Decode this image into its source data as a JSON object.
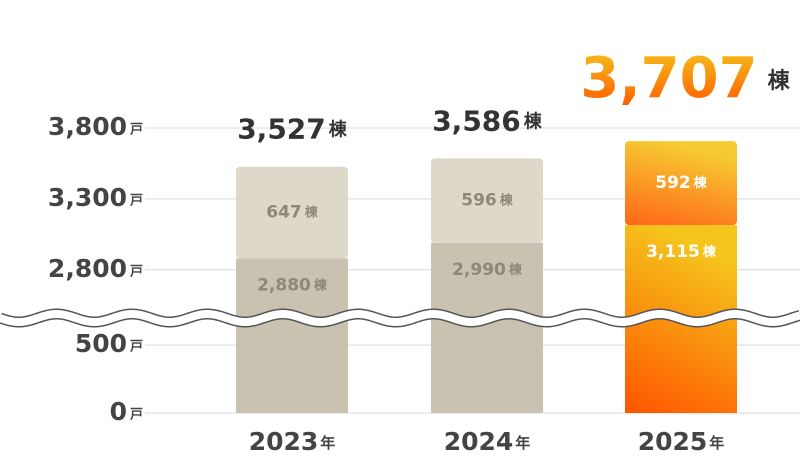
{
  "chart_data": {
    "type": "stacked_bar",
    "categories": [
      "2023",
      "2024",
      "2025"
    ],
    "category_unit": "年",
    "series": [
      {
        "name": null,
        "color": "#c9c2b0",
        "values": [
          2880,
          2990,
          3115
        ],
        "value_labels": [
          "2,880",
          "2,990",
          "3,115"
        ]
      },
      {
        "name": null,
        "color": "#ddd8ca",
        "values": [
          647,
          596,
          592
        ],
        "value_labels": [
          "647",
          "596",
          "592"
        ]
      }
    ],
    "totals": [
      3527,
      3586,
      3707
    ],
    "total_labels": [
      "3,527",
      "3,586",
      "3,707"
    ],
    "value_unit": "棟",
    "highlight": "2025",
    "highlight_colors": [
      "#ff5500",
      "#f5c51c"
    ],
    "ylim": [
      0,
      3800
    ],
    "y_break": [
      700,
      2460
    ],
    "yticks": [
      0,
      {
        "value": 500,
        "label": "500"
      },
      {
        "value": 2800,
        "label": "2,800"
      },
      {
        "value": 3300,
        "label": "3,300"
      },
      {
        "value": 3800,
        "label": "3,800"
      }
    ],
    "y_unit": "戸",
    "grid": true
  }
}
